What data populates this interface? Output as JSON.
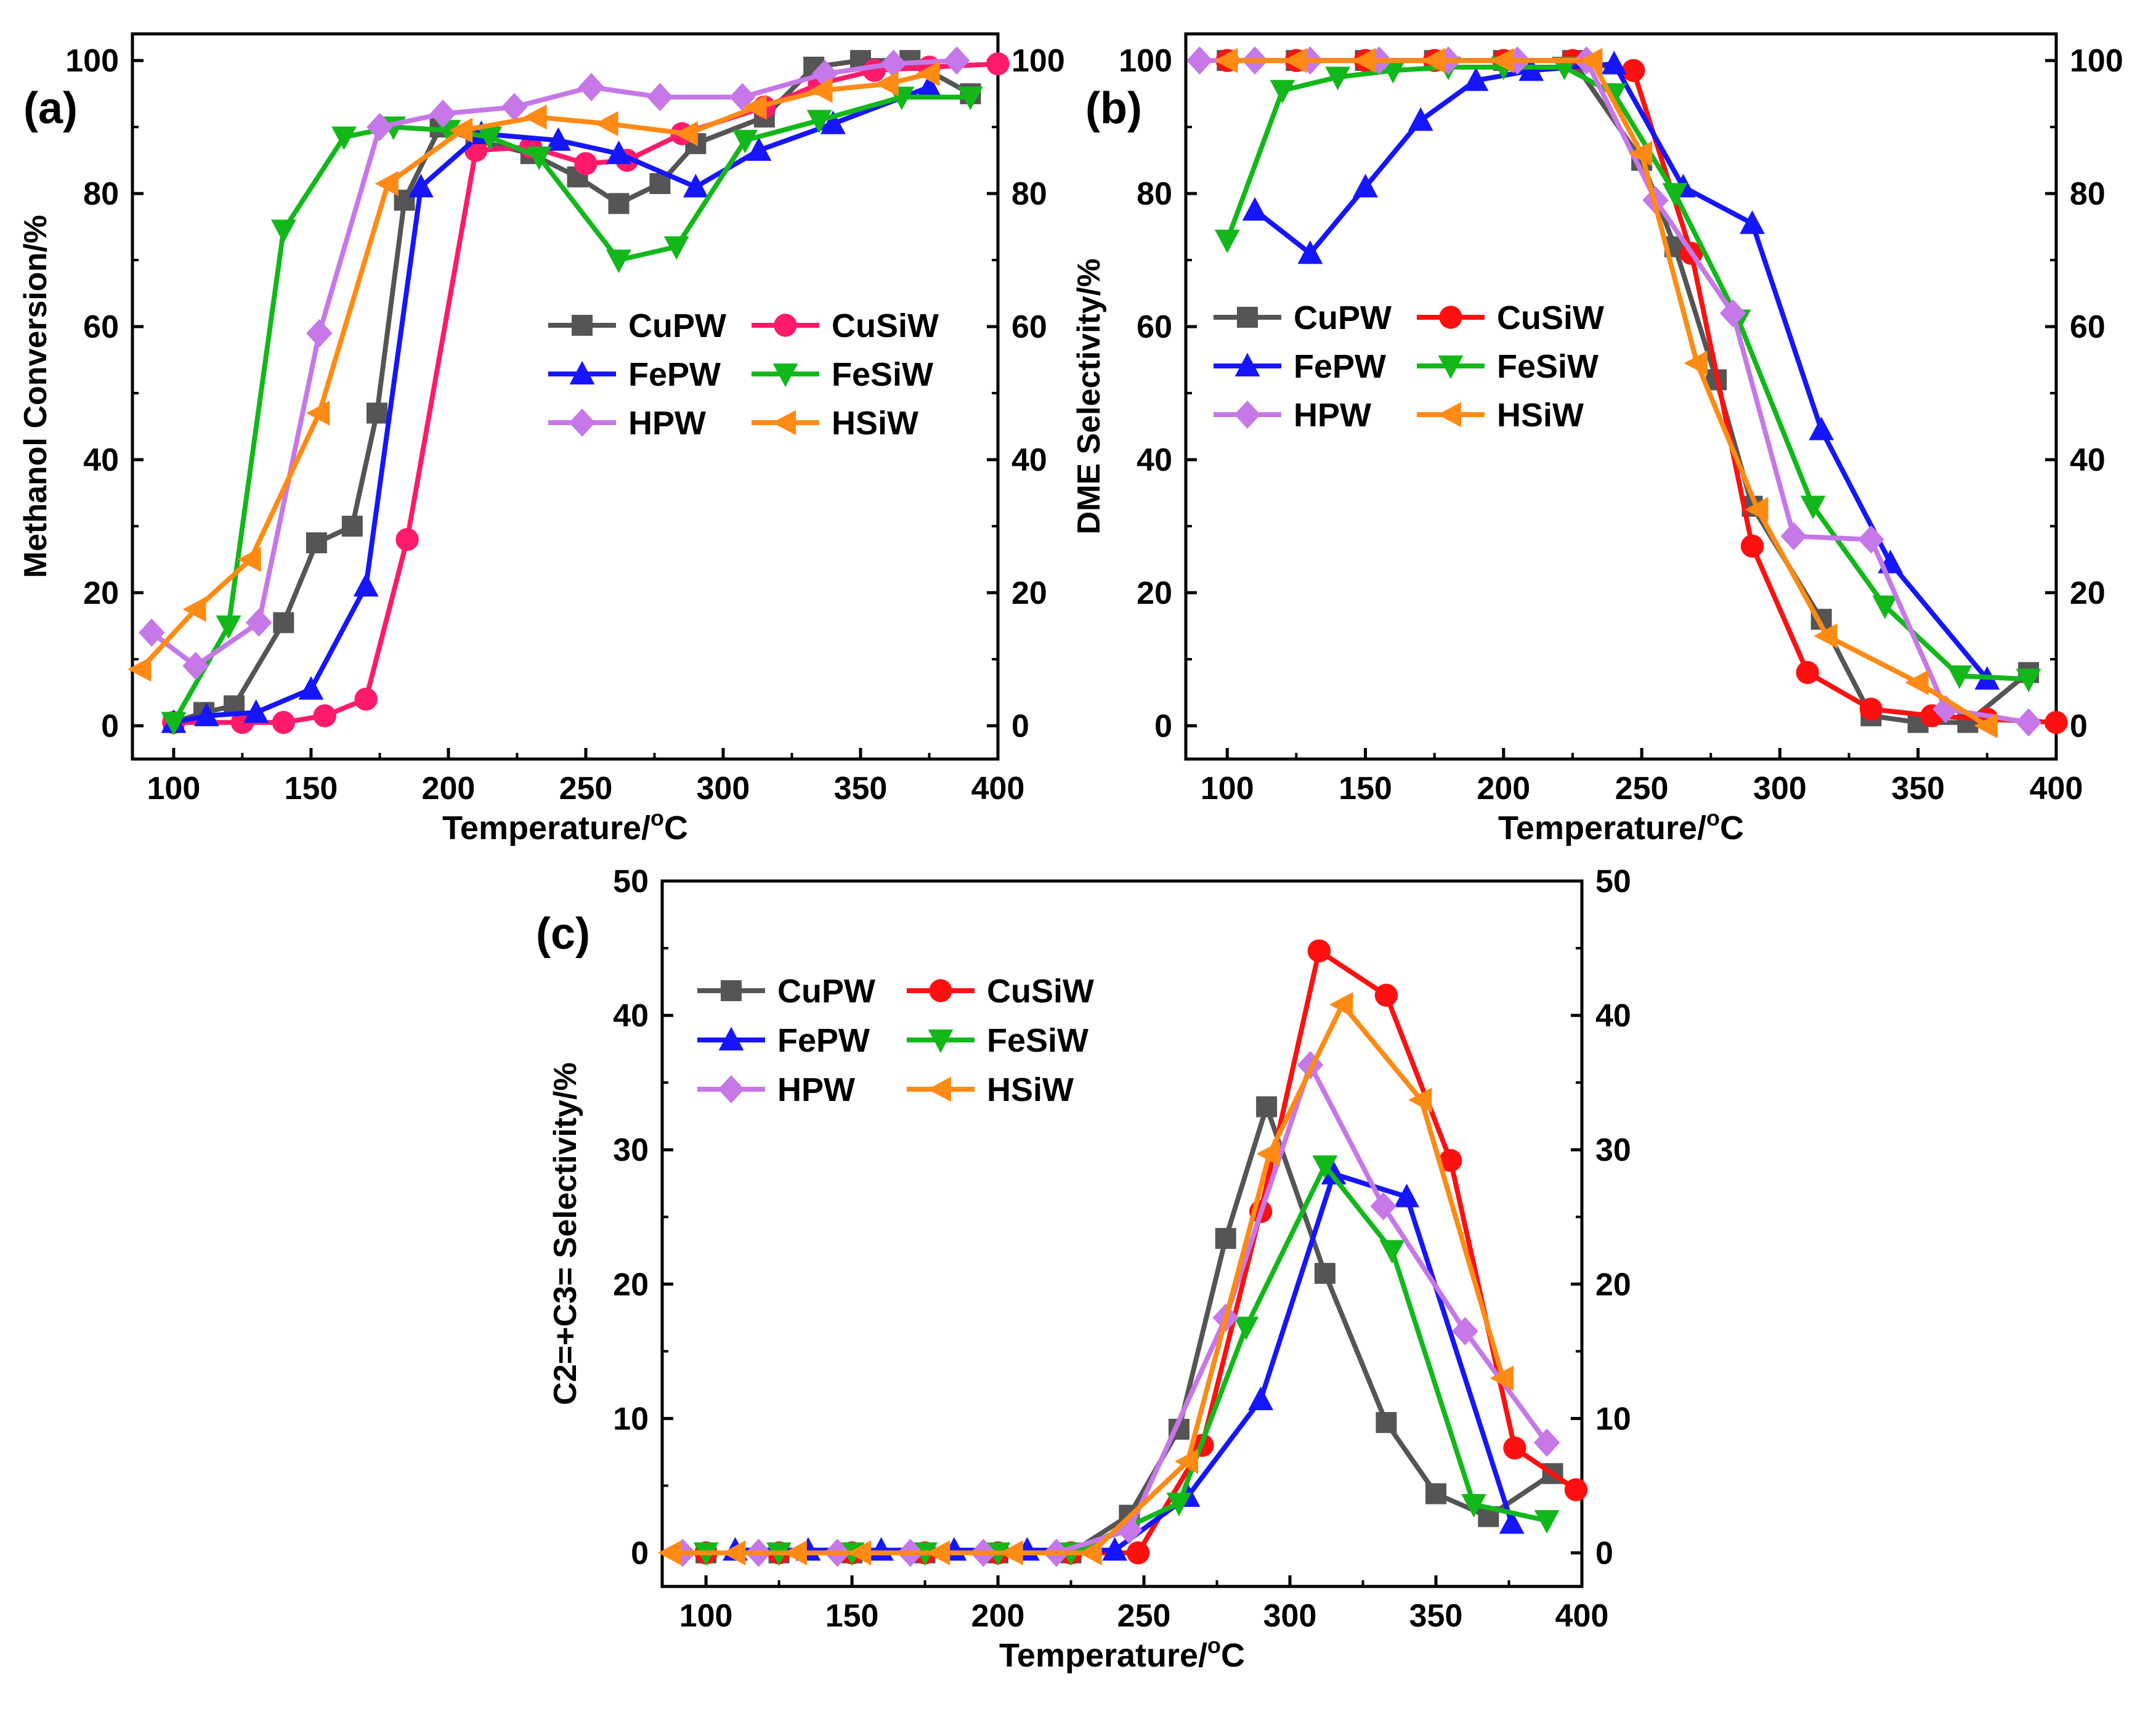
{
  "chart_data": [
    {
      "panel_label": "(a)",
      "type": "line",
      "xlabel": "Temperature/",
      "xlabel_sup": "o",
      "xlabel_unit": "C",
      "ylabel": "Methanol Conversion/%",
      "xlim": [
        85,
        400
      ],
      "ylim": [
        -5,
        104
      ],
      "xticks": [
        100,
        150,
        200,
        250,
        300,
        350,
        400
      ],
      "yticks": [
        0,
        20,
        40,
        60,
        80,
        100
      ],
      "legend_position": "center-right",
      "series": [
        {
          "name": "CuPW",
          "color": "#555555",
          "marker": "square",
          "x": [
            100,
            111,
            122,
            140,
            152,
            165,
            174,
            184,
            197,
            210,
            230,
            247,
            262,
            277,
            290,
            315,
            333,
            350,
            368,
            390
          ],
          "y": [
            0.5,
            2,
            3,
            15.5,
            27.5,
            30,
            47,
            79,
            90,
            88,
            86,
            82.5,
            78.5,
            81.5,
            87.5,
            91.5,
            99,
            100,
            100,
            95
          ]
        },
        {
          "name": "CuSiW",
          "color": "#ff1a6b",
          "marker": "circle",
          "x": [
            100,
            125,
            140,
            155,
            170,
            185,
            210,
            230,
            250,
            265,
            285,
            315,
            335,
            355,
            375,
            400
          ],
          "y": [
            0.5,
            0.5,
            0.5,
            1.5,
            4,
            28,
            86.5,
            87,
            84.5,
            85,
            89,
            93,
            96.5,
            98.5,
            99,
            99.5
          ]
        },
        {
          "name": "FePW",
          "color": "#1515ff",
          "marker": "triangle-up",
          "x": [
            100,
            112,
            130,
            150,
            170,
            190,
            212,
            240,
            262,
            290,
            313,
            340,
            375
          ],
          "y": [
            0.5,
            1.5,
            2,
            5.5,
            21,
            81,
            89,
            88,
            86,
            81,
            86.5,
            90.5,
            96
          ]
        },
        {
          "name": "FeSiW",
          "color": "#12b81a",
          "marker": "triangle-down",
          "x": [
            100,
            120,
            140,
            162,
            180,
            200,
            215,
            233,
            262,
            283,
            308,
            335,
            365,
            390
          ],
          "y": [
            0.5,
            15,
            74.5,
            88.5,
            90,
            89.5,
            88.5,
            85.5,
            70,
            72,
            88,
            91,
            94.5,
            94.5
          ]
        },
        {
          "name": "HPW",
          "color": "#c678e8",
          "marker": "diamond",
          "x": [
            92,
            108,
            131,
            153,
            175,
            198,
            224,
            252,
            277,
            307,
            337,
            362,
            385
          ],
          "y": [
            14,
            9,
            15.5,
            59,
            90,
            92,
            93,
            96,
            94.5,
            94.5,
            98,
            99.5,
            100
          ]
        },
        {
          "name": "HSiW",
          "color": "#ff8a14",
          "marker": "triangle-left",
          "x": [
            88,
            108,
            128,
            153,
            178,
            205,
            232,
            258,
            287,
            312,
            336,
            360,
            375
          ],
          "y": [
            8.5,
            17.5,
            25,
            47,
            81.5,
            89.5,
            91.5,
            90.5,
            89,
            93,
            95.5,
            96.5,
            98
          ]
        }
      ]
    },
    {
      "panel_label": "(b)",
      "type": "line",
      "xlabel": "Temperature/",
      "xlabel_sup": "o",
      "xlabel_unit": "C",
      "ylabel": "DME Selectivity/%",
      "xlim": [
        85,
        400
      ],
      "ylim": [
        -5,
        104
      ],
      "xticks": [
        100,
        150,
        200,
        250,
        300,
        350,
        400
      ],
      "yticks": [
        0,
        20,
        40,
        60,
        80,
        100
      ],
      "legend_position": "center-left",
      "series": [
        {
          "name": "CuPW",
          "color": "#555555",
          "marker": "square",
          "x": [
            100,
            125,
            150,
            175,
            200,
            225,
            250,
            262,
            277,
            290,
            315,
            333,
            350,
            368,
            390
          ],
          "y": [
            100,
            100,
            100,
            100,
            100,
            100,
            85,
            72,
            52,
            33,
            16,
            1.5,
            0.5,
            0.5,
            8
          ]
        },
        {
          "name": "CuSiW",
          "color": "#ff1010",
          "marker": "circle",
          "x": [
            100,
            125,
            150,
            175,
            200,
            225,
            247,
            268,
            290,
            310,
            333,
            355,
            375,
            400
          ],
          "y": [
            100,
            100,
            100,
            100,
            100,
            100,
            98.5,
            71,
            27,
            8,
            2.5,
            1.5,
            1,
            0.5
          ]
        },
        {
          "name": "FePW",
          "color": "#1515ff",
          "marker": "triangle-up",
          "x": [
            110,
            130,
            150,
            170,
            190,
            210,
            240,
            265,
            290,
            315,
            340,
            375
          ],
          "y": [
            77.5,
            71,
            81,
            91,
            97,
            98.5,
            99.5,
            81,
            75.5,
            44.5,
            24.5,
            7
          ]
        },
        {
          "name": "FeSiW",
          "color": "#12b81a",
          "marker": "triangle-down",
          "x": [
            100,
            120,
            140,
            160,
            180,
            200,
            222,
            240,
            262,
            285,
            312,
            338,
            365,
            390
          ],
          "y": [
            73,
            95.5,
            97.5,
            98.5,
            99,
            99,
            99,
            95,
            80,
            61,
            33,
            18,
            7.5,
            7
          ]
        },
        {
          "name": "HPW",
          "color": "#c678e8",
          "marker": "diamond",
          "x": [
            90,
            110,
            130,
            155,
            180,
            205,
            230,
            255,
            283,
            305,
            333,
            360,
            390
          ],
          "y": [
            100,
            100,
            100,
            100,
            100,
            100,
            100,
            79,
            62,
            28.5,
            28,
            2.5,
            0.5
          ]
        },
        {
          "name": "HSiW",
          "color": "#ff8a14",
          "marker": "triangle-left",
          "x": [
            100,
            125,
            150,
            175,
            200,
            232,
            250,
            270,
            292,
            317,
            350,
            375
          ],
          "y": [
            100,
            100,
            100,
            100,
            100,
            100,
            86,
            54.5,
            32.5,
            13.5,
            6.5,
            0
          ]
        }
      ]
    },
    {
      "panel_label": "(c)",
      "type": "line",
      "xlabel": "Temperature/",
      "xlabel_sup": "o",
      "xlabel_unit": "C",
      "ylabel": "C2=+C3= Selectivity/%",
      "xlim": [
        85,
        400
      ],
      "ylim": [
        -2.5,
        50
      ],
      "xticks": [
        100,
        150,
        200,
        250,
        300,
        350,
        400
      ],
      "yticks": [
        0,
        10,
        20,
        30,
        40,
        50
      ],
      "legend_position": "top-left",
      "series": [
        {
          "name": "CuPW",
          "color": "#555555",
          "marker": "square",
          "x": [
            100,
            125,
            150,
            175,
            200,
            225,
            245,
            262,
            278,
            292,
            312,
            333,
            350,
            368,
            390
          ],
          "y": [
            0,
            0,
            0,
            0,
            0,
            0,
            2.8,
            9.2,
            23.4,
            33.2,
            20.8,
            9.7,
            4.4,
            2.7,
            5.9
          ]
        },
        {
          "name": "CuSiW",
          "color": "#ff1010",
          "marker": "circle",
          "x": [
            100,
            125,
            150,
            175,
            200,
            225,
            248,
            270,
            290,
            310,
            333,
            355,
            377,
            398
          ],
          "y": [
            0,
            0,
            0,
            0,
            0,
            0,
            0,
            8,
            25.4,
            44.8,
            41.5,
            29.2,
            7.8,
            4.7
          ]
        },
        {
          "name": "FePW",
          "color": "#1515ff",
          "marker": "triangle-up",
          "x": [
            110,
            135,
            160,
            185,
            210,
            240,
            265,
            290,
            315,
            340,
            376
          ],
          "y": [
            0.2,
            0.2,
            0.2,
            0.2,
            0.2,
            0.2,
            4.2,
            11.4,
            28.2,
            26.5,
            2.2
          ]
        },
        {
          "name": "FeSiW",
          "color": "#12b81a",
          "marker": "triangle-down",
          "x": [
            100,
            125,
            150,
            175,
            200,
            225,
            262,
            285,
            312,
            335,
            363,
            388
          ],
          "y": [
            0,
            0,
            0,
            0,
            0,
            0,
            3.7,
            16.8,
            28.8,
            22.5,
            3.6,
            2.4
          ]
        },
        {
          "name": "HPW",
          "color": "#c678e8",
          "marker": "diamond",
          "x": [
            92,
            118,
            145,
            170,
            195,
            220,
            245,
            278,
            307,
            332,
            360,
            388
          ],
          "y": [
            0,
            0,
            0,
            0,
            0,
            0,
            1.7,
            17.5,
            36.3,
            25.8,
            16.5,
            8.2
          ]
        },
        {
          "name": "HSiW",
          "color": "#ff8a14",
          "marker": "triangle-left",
          "x": [
            88,
            110,
            131,
            153,
            180,
            205,
            232,
            265,
            293,
            318,
            345,
            373
          ],
          "y": [
            0,
            0,
            0,
            0,
            0,
            0,
            0,
            6.8,
            29.7,
            40.8,
            33.7,
            13
          ]
        }
      ]
    }
  ]
}
